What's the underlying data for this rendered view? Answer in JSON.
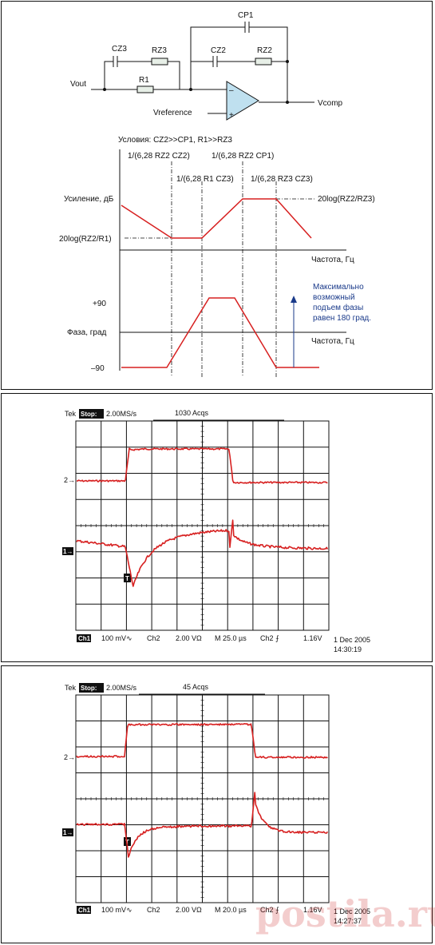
{
  "circuit": {
    "labels": {
      "cp1": "CP1",
      "cz3": "CZ3",
      "rz3": "RZ3",
      "cz2": "CZ2",
      "rz2": "RZ2",
      "r1": "R1",
      "vout": "Vout",
      "vref": "Vreference",
      "vcomp": "Vcomp",
      "minus": "–",
      "plus": "+"
    }
  },
  "bode": {
    "conditions": "Условия: CZ2>>CP1, R1>>RZ3",
    "f1": "1/(6,28 RZ2 CZ2)",
    "f2": "1/(6,28 R1 CZ3)",
    "f3": "1/(6,28 RZ2 CP1)",
    "f4": "1/(6,28 RZ3 CZ3)",
    "gain_label": "Усиление, дБ",
    "gain_high": "20log(RZ2/RZ3)",
    "gain_low": "20log(RZ2/R1)",
    "freq_label_1": "Частота, Гц",
    "phase_label": "Фаза, град",
    "freq_label_2": "Частота, Гц",
    "plus90": "+90",
    "minus90": "–90",
    "note_line1": "Максимально",
    "note_line2": "возможный",
    "note_line3": "подъем фазы",
    "note_line4": "равен 180 град."
  },
  "scope1": {
    "brand": "Tek",
    "stop": "Stop:",
    "rate": "2.00MS/s",
    "acqs": "1030 Acqs",
    "trig_marker": "T",
    "ch2_marker": "2→",
    "ch1_marker": "1→",
    "ch1": "Ch1",
    "ch1_scale": "100 mV∿",
    "ch2": "Ch2",
    "ch2_scale": "2.00 VΩ",
    "timebase": "M 25.0 µs",
    "trig_src": "Ch2 ⨍",
    "trig_level": "1.16V",
    "date": "1 Dec 2005",
    "time": "14:30:19"
  },
  "scope2": {
    "brand": "Tek",
    "stop": "Stop:",
    "rate": "2.00MS/s",
    "acqs": "45 Acqs",
    "trig_marker": "T",
    "ch2_marker": "2→",
    "ch1_marker": "1→",
    "ch1": "Ch1",
    "ch1_scale": "100 mV∿",
    "ch2": "Ch2",
    "ch2_scale": "2.00 VΩ",
    "timebase": "M 20.0 µs",
    "trig_src": "Ch2 ⨍",
    "trig_level": "1.16V",
    "date": "1 Dec 2005",
    "time": "14:27:37"
  },
  "watermark": "postila.ru",
  "colors": {
    "trace": "#d72020",
    "note": "#1a3a8a"
  }
}
